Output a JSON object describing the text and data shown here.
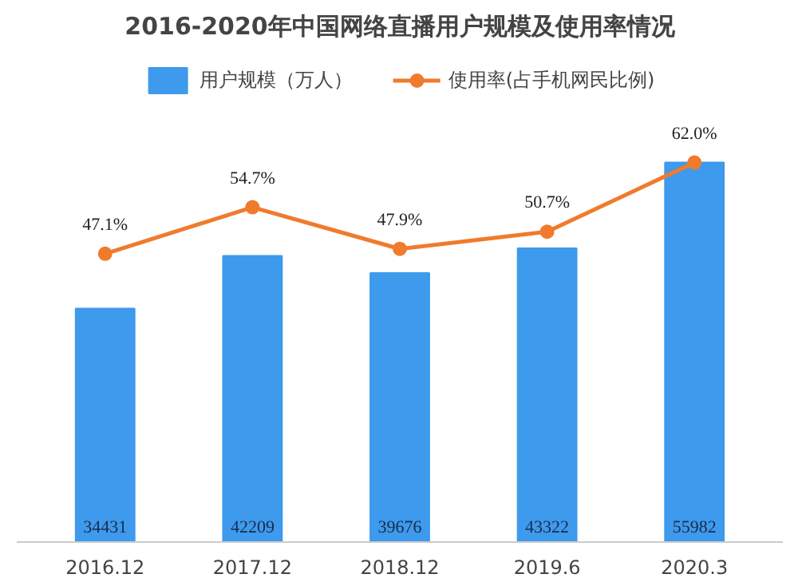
{
  "chart_data": {
    "type": "bar",
    "title": "2016-2020年中国网络直播用户规模及使用率情况",
    "categories": [
      "2016.12",
      "2017.12",
      "2018.12",
      "2019.6",
      "2020.3"
    ],
    "series": [
      {
        "name": "用户规模（万人）",
        "color": "#3d9aec",
        "values": [
          34431,
          42209,
          39676,
          43322,
          55982
        ]
      },
      {
        "name": "使用率(占手机网民比例)",
        "type": "line",
        "axis": "y2",
        "color": "#f07b2c",
        "values": [
          47.1,
          54.7,
          47.9,
          50.7,
          62.0
        ],
        "value_labels": [
          "47.1%",
          "54.7%",
          "47.9%",
          "50.7%",
          "62.0%"
        ]
      }
    ],
    "data_labels": true,
    "marker": "circle",
    "legend": "top"
  }
}
